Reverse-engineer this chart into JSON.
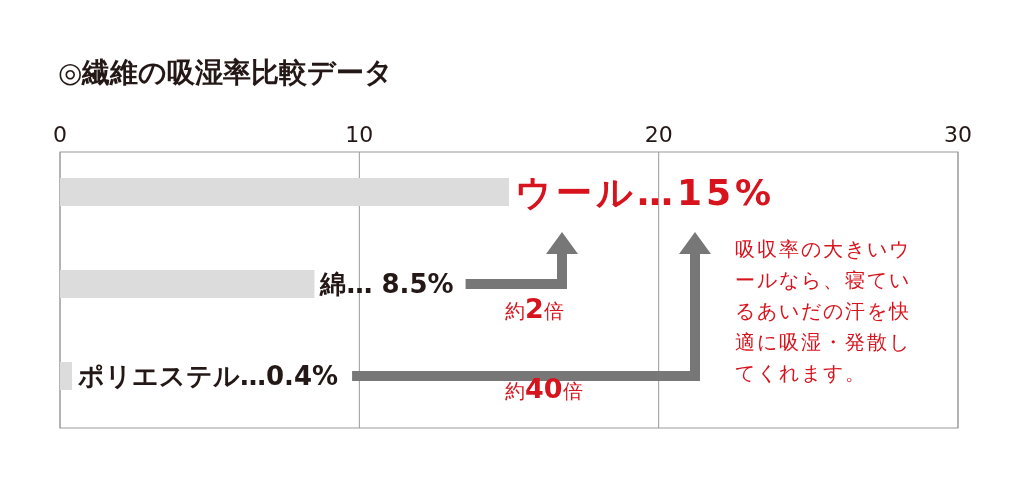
{
  "chart_data": {
    "type": "bar",
    "orientation": "horizontal",
    "title": "◎繊維の吸湿率比較データ",
    "categories": [
      null,
      null,
      null
    ],
    "values": [
      15,
      8.5,
      0.4
    ],
    "color": "#dcdcdc",
    "value_labels": [
      "ウール…15%",
      "綿… 8.5%",
      "ポリエステル…0.4%"
    ],
    "xlim": [
      0,
      30
    ],
    "xticks": [
      0,
      10,
      20,
      30
    ],
    "grid": "x",
    "annotations": [
      "約2倍",
      "約40倍",
      "吸収率の大きいウールなら、寝ているあいだの汗を快適に吸湿・発散してくれます。"
    ]
  }
}
